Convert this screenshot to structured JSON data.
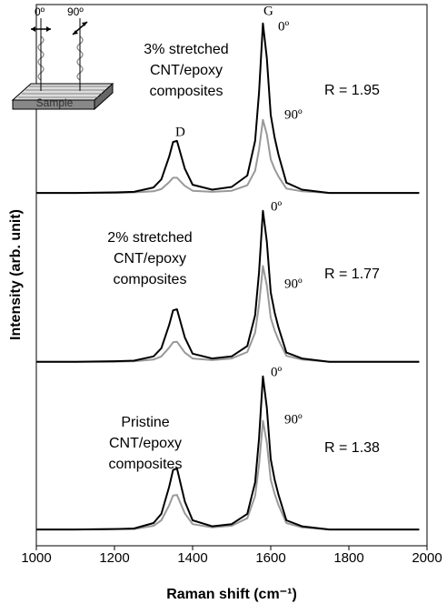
{
  "chart_data": {
    "type": "line",
    "x_label": "Raman shift (cm⁻¹)",
    "y_label": "Intensity (arb. unit)",
    "xlim": [
      1000,
      2000
    ],
    "xticks": [
      1000,
      1200,
      1400,
      1600,
      1800,
      2000
    ],
    "ylim": [
      0,
      100
    ],
    "x": [
      1000,
      1100,
      1200,
      1250,
      1300,
      1320,
      1340,
      1350,
      1360,
      1380,
      1400,
      1450,
      1500,
      1540,
      1560,
      1570,
      1580,
      1590,
      1600,
      1610,
      1620,
      1640,
      1680,
      1750,
      1800,
      1900,
      1980
    ],
    "series": [
      {
        "color": "#000000",
        "values": [
          65.2,
          65.2,
          65.3,
          65.4,
          66.2,
          67.7,
          71.9,
          74.6,
          74.8,
          69.7,
          66.7,
          65.8,
          66.3,
          68.4,
          74.8,
          83.7,
          96.5,
          90.1,
          79.6,
          75.4,
          72.2,
          67.1,
          65.8,
          65.2,
          65.2,
          65.2,
          65.2
        ]
      },
      {
        "color": "#999999",
        "values": [
          65.2,
          65.2,
          65.2,
          65.3,
          65.5,
          65.9,
          67.2,
          68.0,
          68.0,
          66.5,
          65.6,
          65.4,
          65.6,
          66.6,
          69.3,
          73.2,
          78.7,
          76.0,
          71.4,
          69.6,
          68.2,
          66.0,
          65.5,
          65.2,
          65.2,
          65.2,
          65.2
        ]
      },
      {
        "color": "#000000",
        "values": [
          34,
          34,
          34.1,
          34.2,
          35,
          36.5,
          40.8,
          43.5,
          43.7,
          38.5,
          35.5,
          34.6,
          35.0,
          36.9,
          42.6,
          50.5,
          61.9,
          56.2,
          46.8,
          43.1,
          40.3,
          35.7,
          34.6,
          34,
          34,
          34,
          34
        ]
      },
      {
        "color": "#999999",
        "values": [
          34,
          34,
          34.0,
          34.1,
          34.4,
          35.0,
          36.6,
          37.6,
          37.7,
          35.7,
          34.6,
          34.3,
          34.6,
          35.8,
          39.4,
          44.5,
          51.7,
          48.1,
          42.1,
          39.8,
          38.0,
          35.1,
          34.4,
          34,
          34,
          34,
          34
        ]
      },
      {
        "color": "#000000",
        "values": [
          3,
          3,
          3.1,
          3.2,
          4.2,
          5.9,
          10.9,
          14.0,
          14.3,
          8.2,
          4.7,
          3.6,
          4.0,
          5.9,
          11.7,
          19.8,
          31.3,
          25.5,
          16.0,
          12.2,
          9.4,
          4.7,
          3.6,
          3,
          3,
          3,
          3
        ]
      },
      {
        "color": "#999999",
        "values": [
          3,
          3,
          3.1,
          3.1,
          3.7,
          4.7,
          7.5,
          9.3,
          9.4,
          6.0,
          4.0,
          3.4,
          3.7,
          5.1,
          9.2,
          14.9,
          23.1,
          19.0,
          12.2,
          9.6,
          7.5,
          4.2,
          3.4,
          3,
          3,
          3,
          3
        ]
      }
    ],
    "annotations": [
      "G",
      "D",
      "0º",
      "90º",
      "0º",
      "90º",
      "0º",
      "90º",
      "R = 1.95",
      "R = 1.77",
      "R = 1.38"
    ],
    "panel_labels": [
      [
        "3% stretched",
        "CNT/epoxy",
        "composites"
      ],
      [
        "2% stretched",
        "CNT/epoxy",
        "composites"
      ],
      [
        "Pristine",
        "CNT/epoxy",
        "composites"
      ]
    ]
  },
  "inset": {
    "labels": [
      "0º",
      "90º"
    ],
    "sample": "Sample"
  }
}
